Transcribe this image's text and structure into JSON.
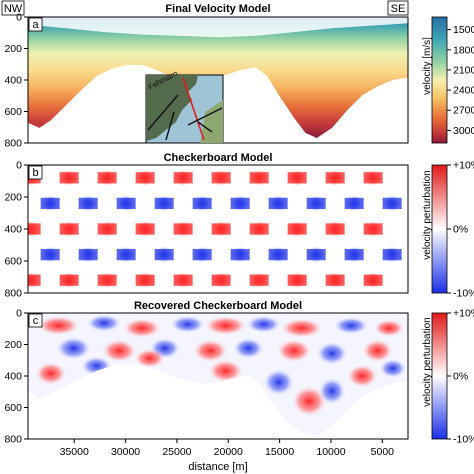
{
  "figure": {
    "orientation": {
      "left": "NW",
      "right": "SE"
    },
    "xlabel": "distance [m]",
    "x_ticks": [
      "35000",
      "30000",
      "25000",
      "20000",
      "15000",
      "10000",
      "5000"
    ],
    "y_ticks": [
      "0",
      "200",
      "400",
      "600",
      "800"
    ]
  },
  "chart_data": [
    {
      "type": "heatmap",
      "panel_letter": "a",
      "title": "Final Velocity Model",
      "x_range": [
        39500,
        2500
      ],
      "ylim": [
        0,
        800
      ],
      "colorbar": {
        "label": "velocity [m/s]",
        "ticks": [
          "1500",
          "1800",
          "2100",
          "2400",
          "2700",
          "3000"
        ],
        "range": [
          1500,
          3100
        ]
      },
      "inset_map": {
        "label": "Fehmarn",
        "colors": {
          "sea": "#9fc4d6",
          "land": "#556b4e",
          "track_highlight": "#e31a1c",
          "track": "#111111"
        }
      }
    },
    {
      "type": "heatmap",
      "panel_letter": "b",
      "title": "Checkerboard Model",
      "ylim": [
        0,
        800
      ],
      "colorbar": {
        "label": "velocity perturbation",
        "ticks": [
          "+10%",
          "0%",
          "-10%"
        ],
        "range": [
          -10,
          10
        ]
      }
    },
    {
      "type": "heatmap",
      "panel_letter": "c",
      "title": "Recovered Checkerboard Model",
      "ylim": [
        0,
        800
      ],
      "colorbar": {
        "label": "velocity perturbation",
        "ticks": [
          "+10%",
          "0%",
          "-10%"
        ],
        "range": [
          -10,
          10
        ]
      }
    }
  ]
}
